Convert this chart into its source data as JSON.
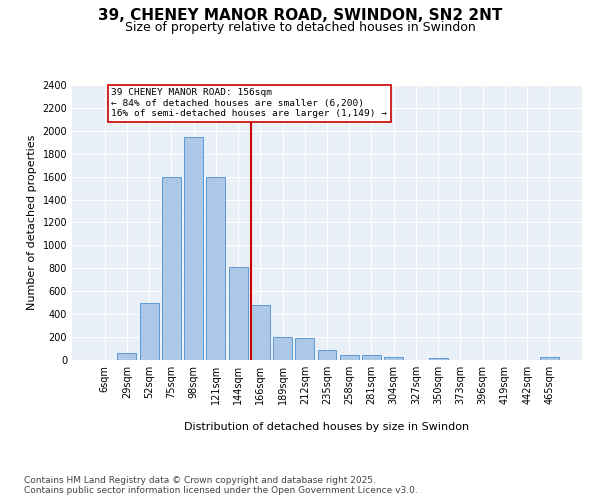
{
  "title": "39, CHENEY MANOR ROAD, SWINDON, SN2 2NT",
  "subtitle": "Size of property relative to detached houses in Swindon",
  "xlabel": "Distribution of detached houses by size in Swindon",
  "ylabel": "Number of detached properties",
  "categories": [
    "6sqm",
    "29sqm",
    "52sqm",
    "75sqm",
    "98sqm",
    "121sqm",
    "144sqm",
    "166sqm",
    "189sqm",
    "212sqm",
    "235sqm",
    "258sqm",
    "281sqm",
    "304sqm",
    "327sqm",
    "350sqm",
    "373sqm",
    "396sqm",
    "419sqm",
    "442sqm",
    "465sqm"
  ],
  "values": [
    0,
    60,
    500,
    1600,
    1950,
    1600,
    810,
    480,
    200,
    195,
    90,
    45,
    40,
    30,
    0,
    15,
    0,
    0,
    0,
    0,
    30
  ],
  "bar_color": "#adc8e6",
  "bar_edgecolor": "#5a9bd5",
  "vline_color": "#cc0000",
  "annotation_title": "39 CHENEY MANOR ROAD: 156sqm",
  "annotation_line1": "← 84% of detached houses are smaller (6,200)",
  "annotation_line2": "16% of semi-detached houses are larger (1,149) →",
  "annotation_box_color": "#cc0000",
  "ylim": [
    0,
    2400
  ],
  "yticks": [
    0,
    200,
    400,
    600,
    800,
    1000,
    1200,
    1400,
    1600,
    1800,
    2000,
    2200,
    2400
  ],
  "background_color": "#eaf0f8",
  "footer_line1": "Contains HM Land Registry data © Crown copyright and database right 2025.",
  "footer_line2": "Contains public sector information licensed under the Open Government Licence v3.0.",
  "title_fontsize": 11,
  "subtitle_fontsize": 9,
  "label_fontsize": 8,
  "tick_fontsize": 7,
  "footer_fontsize": 6.5
}
